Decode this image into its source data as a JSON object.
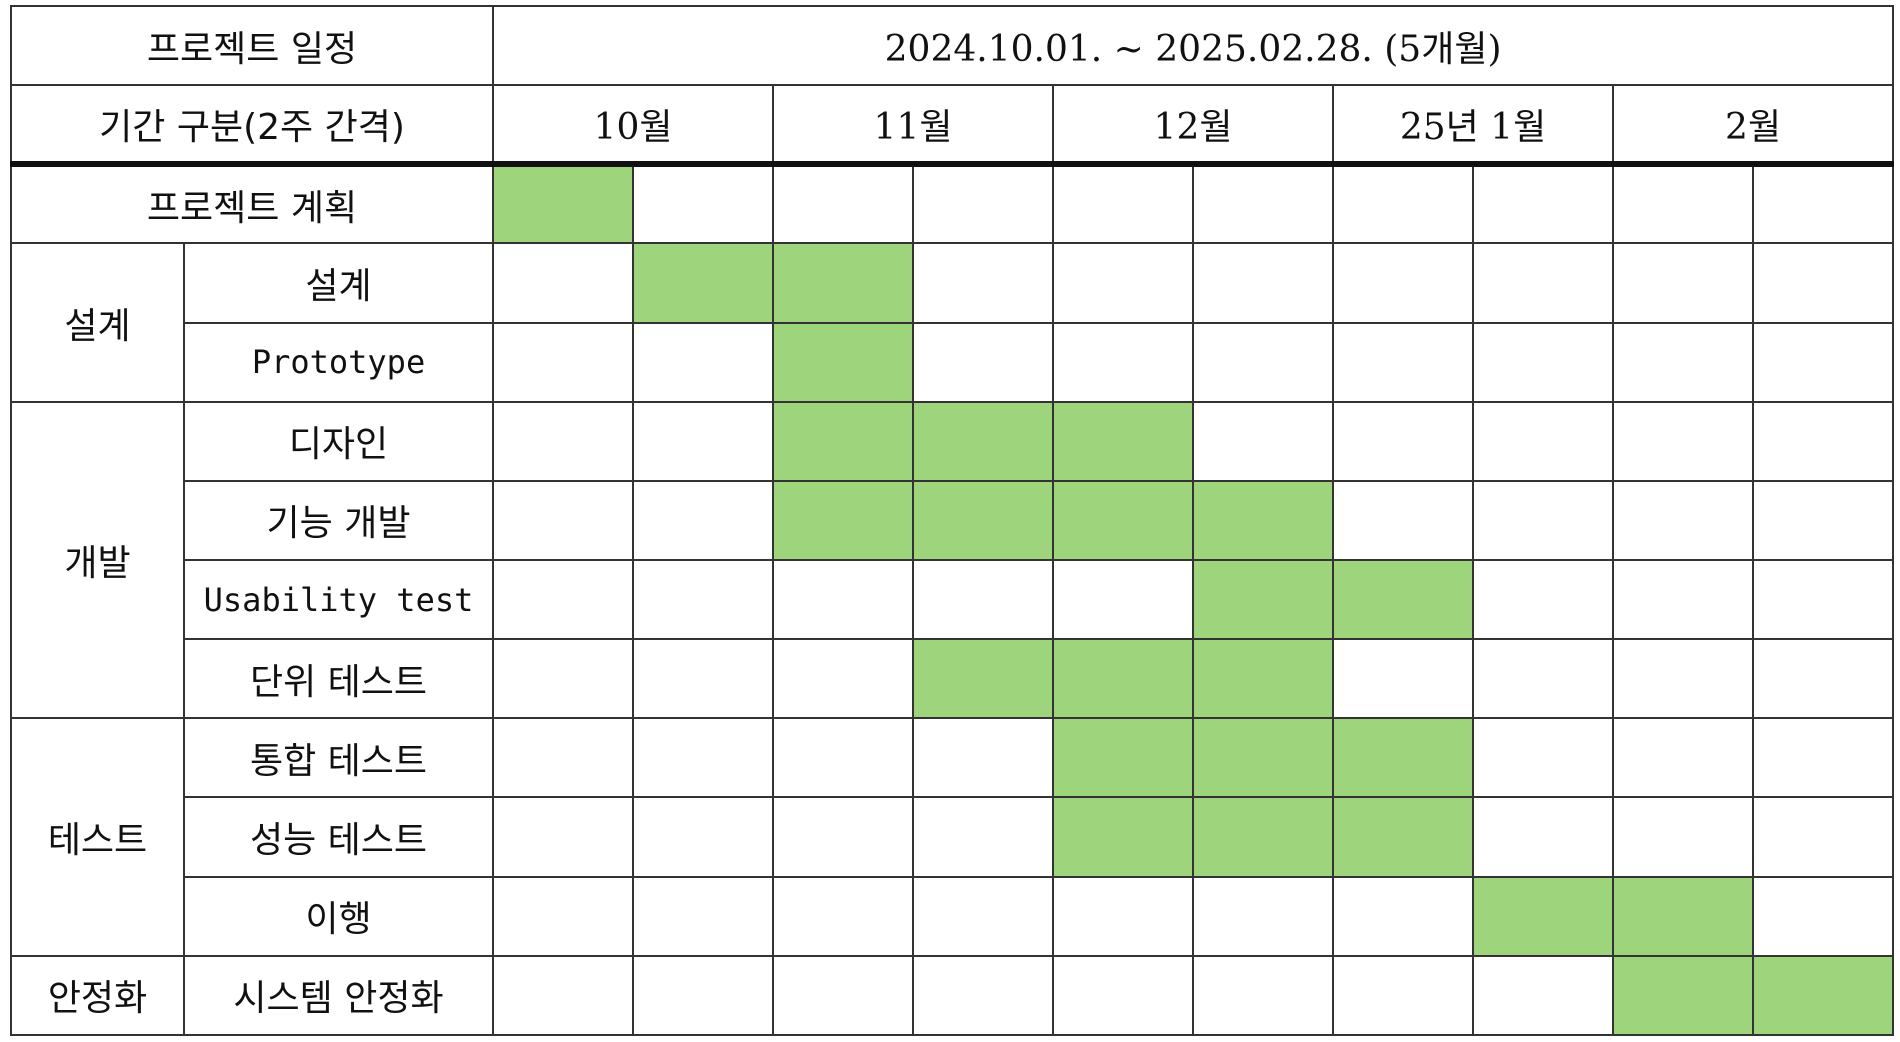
{
  "header": {
    "project_label": "프로젝트 일정",
    "date_range": "2024.10.01. ~ 2025.02.28. (5개월)",
    "period_label": "기간 구분(2주 간격)",
    "months": [
      "10월",
      "11월",
      "12월",
      "25년 1월",
      "2월"
    ]
  },
  "rows": [
    {
      "group": "프로젝트 계획",
      "task": "",
      "filled": [
        1,
        0,
        0,
        0,
        0,
        0,
        0,
        0,
        0,
        0
      ]
    },
    {
      "group": "설계",
      "task": "설계",
      "filled": [
        0,
        1,
        1,
        0,
        0,
        0,
        0,
        0,
        0,
        0
      ]
    },
    {
      "group": "설계",
      "task": "Prototype",
      "filled": [
        0,
        0,
        1,
        0,
        0,
        0,
        0,
        0,
        0,
        0
      ]
    },
    {
      "group": "개발",
      "task": "디자인",
      "filled": [
        0,
        0,
        1,
        1,
        1,
        0,
        0,
        0,
        0,
        0
      ]
    },
    {
      "group": "개발",
      "task": "기능 개발",
      "filled": [
        0,
        0,
        1,
        1,
        1,
        1,
        0,
        0,
        0,
        0
      ]
    },
    {
      "group": "개발",
      "task": "Usability test",
      "filled": [
        0,
        0,
        0,
        0,
        0,
        1,
        1,
        0,
        0,
        0
      ]
    },
    {
      "group": "개발",
      "task": "단위 테스트",
      "filled": [
        0,
        0,
        0,
        1,
        1,
        1,
        0,
        0,
        0,
        0
      ]
    },
    {
      "group": "테스트",
      "task": "통합 테스트",
      "filled": [
        0,
        0,
        0,
        0,
        1,
        1,
        1,
        0,
        0,
        0
      ]
    },
    {
      "group": "테스트",
      "task": "성능 테스트",
      "filled": [
        0,
        0,
        0,
        0,
        1,
        1,
        1,
        0,
        0,
        0
      ]
    },
    {
      "group": "테스트",
      "task": "이행",
      "filled": [
        0,
        0,
        0,
        0,
        0,
        0,
        0,
        1,
        1,
        0
      ]
    },
    {
      "group": "안정화",
      "task": "시스템 안정화",
      "filled": [
        0,
        0,
        0,
        0,
        0,
        0,
        0,
        0,
        1,
        1
      ]
    }
  ],
  "colors": {
    "filled": "#9dd47c",
    "border": "#333333"
  }
}
